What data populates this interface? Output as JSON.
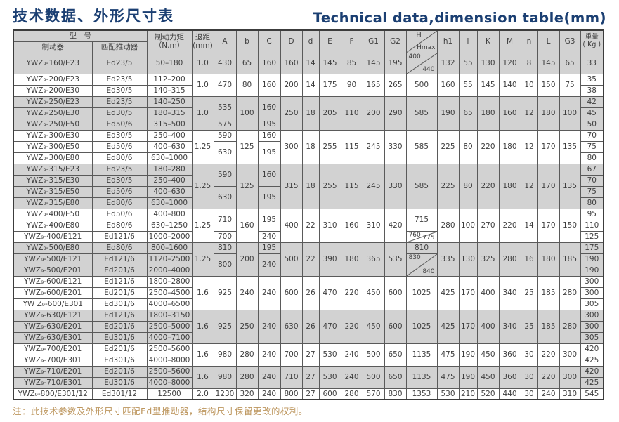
{
  "page": {
    "title_zh": "技术数据、外形尺寸表",
    "title_en": "Technical data,dimension table(mm)",
    "note": "注：此技术参数及外形尺寸匹配Ed型推动器，结构尺寸保留更改的权利。"
  },
  "colors": {
    "title": "#1b3f72",
    "note_text": "#bd965e",
    "shaded_row": "#d2d2d2",
    "border": "#5a5a5a"
  },
  "table": {
    "header": {
      "model_group": "型　号",
      "brake": "制动器",
      "pusher": "匹配推动器",
      "torque_l1": "制动力矩",
      "torque_l2": "（N.m）",
      "gap_l1": "退距",
      "gap_l2": "(mm)",
      "dims": [
        "A",
        "b",
        "C",
        "D",
        "d",
        "E",
        "F",
        "G1",
        "G2"
      ],
      "h_top": "H",
      "h_bottom": "Hmax",
      "dims2": [
        "h1",
        "i",
        "K",
        "M",
        "n",
        "L",
        "G3"
      ],
      "weight_l1": "重量",
      "weight_l2": "( Kg )"
    },
    "groups": [
      {
        "bg": "gray",
        "tall": true,
        "rows": [
          [
            "YWZ₉-160/E23",
            "Ed23/5",
            "50–180",
            "33"
          ]
        ],
        "cols": {
          "gap": "1.0",
          "A": "430",
          "b": "65",
          "C": "160",
          "D": "160",
          "d": "14",
          "E": "145",
          "F": "85",
          "G1": "145",
          "G2": "195",
          "H": [
            {
              "d": [
                "400",
                "440"
              ]
            }
          ],
          "h1": "132",
          "i": "55",
          "K": "130",
          "M": "120",
          "n": "8",
          "L": "145",
          "G3": "65"
        }
      },
      {
        "bg": "white",
        "rows": [
          [
            "YWZ₉-200/E23",
            "Ed23/5",
            "112–200",
            "35"
          ],
          [
            "YWZ₉-200/E30",
            "Ed30/5",
            "140–315",
            "38"
          ]
        ],
        "cols": {
          "gap": "1.0",
          "A": "470",
          "b": "80",
          "C": "160",
          "D": "200",
          "d": "14",
          "E": "175",
          "F": "90",
          "G1": "165",
          "G2": "265",
          "H": "500",
          "h1": "160",
          "i": "55",
          "K": "145",
          "M": "140",
          "n": "10",
          "L": "150",
          "G3": "75"
        }
      },
      {
        "bg": "gray",
        "rows": [
          [
            "YWZ₉-250/E23",
            "Ed23/5",
            "140–250",
            "42"
          ],
          [
            "YWZ₉-250/E30",
            "Ed30/5",
            "180–315",
            "45"
          ],
          [
            "YWZ₉-250/E50",
            "Ed50/6",
            "315–500",
            "50"
          ]
        ],
        "cols": {
          "gap": "1.0",
          "A": [
            {
              "v": "535",
              "s": 2
            },
            "575"
          ],
          "b": "100",
          "C": [
            {
              "v": "160",
              "s": 2
            },
            "195"
          ],
          "D": "250",
          "d": "18",
          "E": "205",
          "F": "110",
          "G1": "200",
          "G2": "290",
          "H": "585",
          "h1": "190",
          "i": "65",
          "K": "180",
          "M": "160",
          "n": "12",
          "L": "180",
          "G3": "100"
        }
      },
      {
        "bg": "white",
        "rows": [
          [
            "YWZ₉-300/E30",
            "Ed30/5",
            "250–400",
            "70"
          ],
          [
            "YWZ₉-300/E50",
            "Ed50/6",
            "400–630",
            "75"
          ],
          [
            "YWZ₉-300/E80",
            "Ed80/6",
            "630–1000",
            "80"
          ]
        ],
        "cols": {
          "gap": "1.25",
          "A": [
            "590",
            {
              "v": "630",
              "s": 2
            }
          ],
          "b": "125",
          "C": [
            "160",
            {
              "v": "195",
              "s": 2
            }
          ],
          "D": "300",
          "d": "18",
          "E": "255",
          "F": "115",
          "G1": "245",
          "G2": "330",
          "H": "585",
          "h1": "225",
          "i": "80",
          "K": "220",
          "M": "180",
          "n": "12",
          "L": "170",
          "G3": "135"
        }
      },
      {
        "bg": "gray",
        "rows": [
          [
            "YWZ₉-315/E23",
            "Ed23/5",
            "180–280",
            "67"
          ],
          [
            "YWZ₉-315/E30",
            "Ed30/5",
            "250–400",
            "70"
          ],
          [
            "YWZ₉-315/E50",
            "Ed50/6",
            "400–630",
            "75"
          ],
          [
            "YWZ₉-315/E80",
            "Ed80/6",
            "630–1000",
            "80"
          ]
        ],
        "cols": {
          "gap": "1.25",
          "A": [
            {
              "v": "590",
              "s": 2
            },
            {
              "v": "630",
              "s": 2
            }
          ],
          "b": "125",
          "C": [
            {
              "v": "160",
              "s": 2
            },
            {
              "v": "195",
              "s": 2
            }
          ],
          "D": "315",
          "d": "18",
          "E": "255",
          "F": "115",
          "G1": "245",
          "G2": "330",
          "H": "585",
          "h1": "225",
          "i": "80",
          "K": "220",
          "M": "180",
          "n": "12",
          "L": "170",
          "G3": "135"
        }
      },
      {
        "bg": "white",
        "rows": [
          [
            "YWZ₉-400/E50",
            "Ed50/6",
            "400–800",
            "95"
          ],
          [
            "YWZ₉-400/E80",
            "Ed80/6",
            "630–1250",
            "110"
          ],
          [
            "YWZ₉-400/E121",
            "Ed121/6",
            "1000–2000",
            "125"
          ]
        ],
        "cols": {
          "gap": "1.25",
          "A": [
            {
              "v": "710",
              "s": 2
            },
            "700"
          ],
          "b": "160",
          "C": [
            {
              "v": "195",
              "s": 2
            },
            "240"
          ],
          "D": "400",
          "d": "22",
          "E": "310",
          "F": "160",
          "G1": "310",
          "G2": "420",
          "H": [
            {
              "v": "715",
              "s": 2
            },
            {
              "d": [
                "760",
                "775"
              ]
            }
          ],
          "h1": "280",
          "i": "100",
          "K": "270",
          "M": "220",
          "n": "14",
          "L": "170",
          "G3": "150"
        }
      },
      {
        "bg": "gray",
        "rows": [
          [
            "YWZ₉-500/E80",
            "Ed80/6",
            "800–1600",
            "175"
          ],
          [
            "YWZ₉-500/E121",
            "Ed121/6",
            "1120–2500",
            "190"
          ],
          [
            "YWZ₉-500/E201",
            "Ed201/6",
            "2000–4000",
            "190"
          ]
        ],
        "cols": {
          "gap": "1.25",
          "A": [
            "810",
            {
              "v": "800",
              "s": 2
            }
          ],
          "b": "200",
          "C": [
            "195",
            {
              "v": "240",
              "s": 2
            }
          ],
          "D": "500",
          "d": "22",
          "E": "390",
          "F": "180",
          "G1": "365",
          "G2": "535",
          "H": [
            "810",
            {
              "d": [
                "830",
                "840"
              ],
              "s": 2
            }
          ],
          "h1": "335",
          "i": "130",
          "K": "325",
          "M": "280",
          "n": "16",
          "L": "180",
          "G3": "185"
        }
      },
      {
        "bg": "white",
        "rows": [
          [
            "YWZ₉-600/E121",
            "Ed121/6",
            "1800–2800",
            "300"
          ],
          [
            "YWZ₉-600/E201",
            "Ed201/6",
            "2500–4500",
            "300"
          ],
          [
            "YW Z₉-600/E301",
            "Ed301/6",
            "4000–6500",
            "305"
          ]
        ],
        "cols": {
          "gap": "1.6",
          "A": "925",
          "b": "240",
          "C": "240",
          "D": "600",
          "d": "26",
          "E": "470",
          "F": "220",
          "G1": "450",
          "G2": "600",
          "H": "1025",
          "h1": "425",
          "i": "170",
          "K": "400",
          "M": "340",
          "n": "25",
          "L": "185",
          "G3": "280"
        }
      },
      {
        "bg": "gray",
        "rows": [
          [
            "YWZ₉-630/E121",
            "Ed121/6",
            "1800–3150",
            "300"
          ],
          [
            "YWZ₉-630/E201",
            "Ed201/6",
            "2500–5000",
            "300"
          ],
          [
            "YWZ₉-630/E301",
            "Ed301/6",
            "4000–7100",
            "305"
          ]
        ],
        "cols": {
          "gap": "1.6",
          "A": "925",
          "b": "250",
          "C": "240",
          "D": "630",
          "d": "26",
          "E": "470",
          "F": "220",
          "G1": "450",
          "G2": "600",
          "H": "1025",
          "h1": "425",
          "i": "170",
          "K": "400",
          "M": "340",
          "n": "25",
          "L": "185",
          "G3": "280"
        }
      },
      {
        "bg": "white",
        "rows": [
          [
            "YWZ₉-700/E201",
            "Ed201/6",
            "2500–5600",
            "420"
          ],
          [
            "YWZ₉-700/E301",
            "Ed301/6",
            "4000–8000",
            "425"
          ]
        ],
        "cols": {
          "gap": "1.6",
          "A": "980",
          "b": "280",
          "C": "240",
          "D": "700",
          "d": "27",
          "E": "530",
          "F": "240",
          "G1": "500",
          "G2": "650",
          "H": "1135",
          "h1": "475",
          "i": "190",
          "K": "450",
          "M": "360",
          "n": "30",
          "L": "220",
          "G3": "300"
        }
      },
      {
        "bg": "gray",
        "rows": [
          [
            "YWZ₉-710/E201",
            "Ed201/6",
            "2500–5600",
            "420"
          ],
          [
            "YWZ₉-710/E301",
            "Ed301/6",
            "4000–8000",
            "425"
          ]
        ],
        "cols": {
          "gap": "1.6",
          "A": "980",
          "b": "280",
          "C": "240",
          "D": "710",
          "d": "27",
          "E": "530",
          "F": "240",
          "G1": "500",
          "G2": "650",
          "H": "1135",
          "h1": "475",
          "i": "190",
          "K": "450",
          "M": "360",
          "n": "30",
          "L": "220",
          "G3": "300"
        }
      },
      {
        "bg": "white",
        "rows": [
          [
            "YWZ₉-800/E301/12",
            "Ed301/12",
            "12500",
            "545"
          ]
        ],
        "cols": {
          "gap": "2.0",
          "A": "1230",
          "b": "320",
          "C": "240",
          "D": "800",
          "d": "27",
          "E": "600",
          "F": "280",
          "G1": "570",
          "G2": "830",
          "H": "1353",
          "h1": "530",
          "i": "210",
          "K": "520",
          "M": "440",
          "n": "30",
          "L": "240",
          "G3": "310"
        }
      }
    ]
  }
}
